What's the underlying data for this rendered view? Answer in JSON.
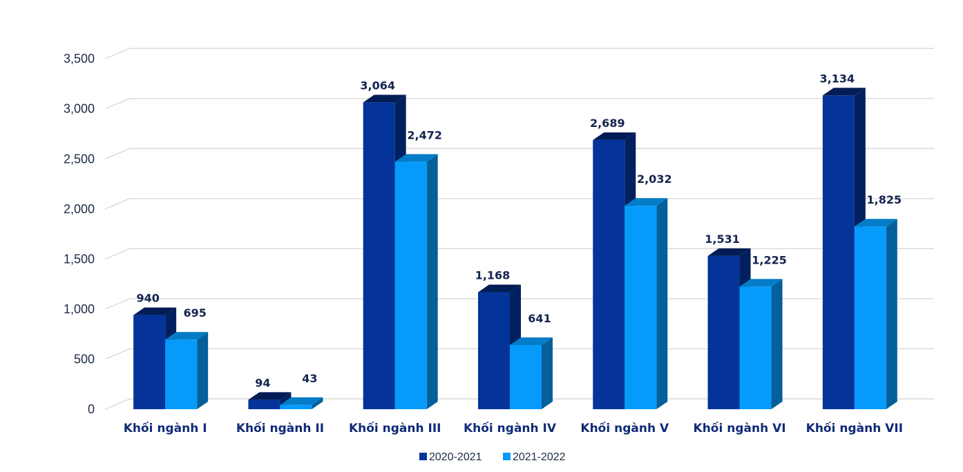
{
  "chart_data": {
    "type": "bar",
    "title": "",
    "xlabel": "",
    "ylabel": "",
    "ylim": [
      0,
      3500
    ],
    "yticks": [
      0,
      500,
      1000,
      1500,
      2000,
      2500,
      3000,
      3500
    ],
    "ytick_labels": [
      "0",
      "500",
      "1,000",
      "1,500",
      "2,000",
      "2,500",
      "3,000",
      "3,500"
    ],
    "grid": true,
    "style": "3d-clustered-column",
    "legend_position": "bottom",
    "categories": [
      "Khối ngành I",
      "Khối ngành II",
      "Khối ngành III",
      "Khối ngành IV",
      "Khối ngành V",
      "Khối ngành VI",
      "Khối ngành VII"
    ],
    "series": [
      {
        "name": "2020-2021",
        "color": "#04339a",
        "values": [
          940,
          94,
          3064,
          1168,
          2689,
          1531,
          3134
        ],
        "labels": [
          "940",
          "94",
          "3,064",
          "1,168",
          "2,689",
          "1,531",
          "3,134"
        ]
      },
      {
        "name": "2021-2022",
        "color": "#069bfa",
        "values": [
          695,
          43,
          2472,
          641,
          2032,
          1225,
          1825
        ],
        "labels": [
          "695",
          "43",
          "2,472",
          "641",
          "2,032",
          "1,225",
          "1,825"
        ]
      }
    ]
  }
}
